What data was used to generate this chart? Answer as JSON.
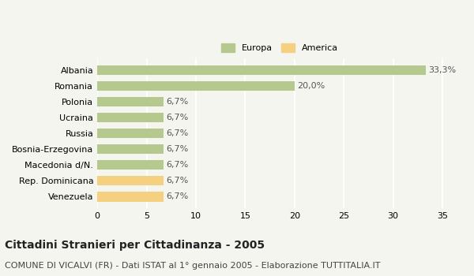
{
  "categories": [
    "Albania",
    "Romania",
    "Polonia",
    "Ucraina",
    "Russia",
    "Bosnia-Erzegovina",
    "Macedonia d/N.",
    "Rep. Dominicana",
    "Venezuela"
  ],
  "values": [
    33.3,
    20.0,
    6.7,
    6.7,
    6.7,
    6.7,
    6.7,
    6.7,
    6.7
  ],
  "colors": [
    "#b5c98e",
    "#b5c98e",
    "#b5c98e",
    "#b5c98e",
    "#b5c98e",
    "#b5c98e",
    "#b5c98e",
    "#f5d080",
    "#f5d080"
  ],
  "labels": [
    "33,3%",
    "20,0%",
    "6,7%",
    "6,7%",
    "6,7%",
    "6,7%",
    "6,7%",
    "6,7%",
    "6,7%"
  ],
  "xlim": [
    0,
    37
  ],
  "xticks": [
    0,
    5,
    10,
    15,
    20,
    25,
    30,
    35
  ],
  "legend_europa_color": "#b5c98e",
  "legend_america_color": "#f5d080",
  "title": "Cittadini Stranieri per Cittadinanza - 2005",
  "subtitle": "COMUNE DI VICALVI (FR) - Dati ISTAT al 1° gennaio 2005 - Elaborazione TUTTITALIA.IT",
  "background_color": "#f5f5f0",
  "grid_color": "#ffffff",
  "title_fontsize": 10,
  "subtitle_fontsize": 8,
  "label_fontsize": 8,
  "tick_fontsize": 8
}
